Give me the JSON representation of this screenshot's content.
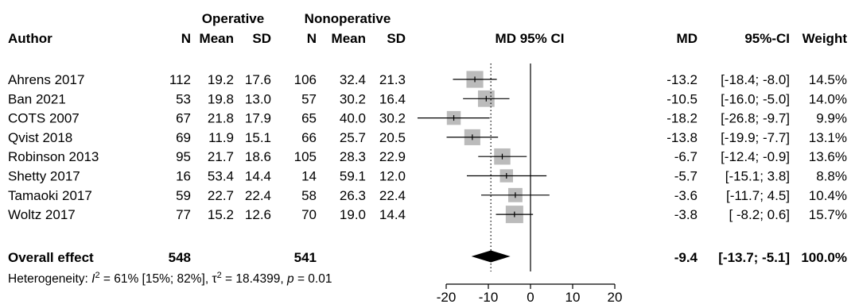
{
  "headers": {
    "group1": "Operative",
    "group2": "Nonoperative",
    "author": "Author",
    "n1": "N",
    "mean1": "Mean",
    "sd1": "SD",
    "n2": "N",
    "mean2": "Mean",
    "sd2": "SD",
    "plot": "MD 95% CI",
    "md": "MD",
    "ci": "95%-CI",
    "weight": "Weight"
  },
  "overall": {
    "label": "Overall effect",
    "n1": "548",
    "n2": "541",
    "md_text": "-9.4",
    "ci_text": "[-13.7; -5.1]",
    "weight_text": "100.0%",
    "md": -9.4,
    "lower": -13.7,
    "upper": -5.1
  },
  "heterogeneity": {
    "prefix": "Heterogeneity: ",
    "i2_symbol": "I",
    "i2_sup": "2",
    "i2_rest": " = 61% [15%; 82%], ",
    "tau_symbol": "τ",
    "tau_sup": "2",
    "tau_rest": " = 18.4399, ",
    "p_symbol": "p",
    "p_rest": " = 0.01"
  },
  "chart_data": {
    "type": "forest",
    "xlabel": "",
    "xlim": [
      -20,
      20
    ],
    "xticks": [
      -20,
      -10,
      0,
      10,
      20
    ],
    "null_line": 0,
    "overall_line": -9.4,
    "marker_color": "#bbbbbb",
    "studies": [
      {
        "author": "Ahrens 2017",
        "n1": "112",
        "mean1": "19.2",
        "sd1": "17.6",
        "n2": "106",
        "mean2": "32.4",
        "sd2": "21.3",
        "md": -13.2,
        "lower": -18.4,
        "upper": -8.0,
        "md_text": "-13.2",
        "ci_text": "[-18.4; -8.0]",
        "weight": 14.5,
        "weight_text": "14.5%"
      },
      {
        "author": "Ban 2021",
        "n1": "53",
        "mean1": "19.8",
        "sd1": "13.0",
        "n2": "57",
        "mean2": "30.2",
        "sd2": "16.4",
        "md": -10.5,
        "lower": -16.0,
        "upper": -5.0,
        "md_text": "-10.5",
        "ci_text": "[-16.0; -5.0]",
        "weight": 14.0,
        "weight_text": "14.0%"
      },
      {
        "author": "COTS 2007",
        "n1": "67",
        "mean1": "21.8",
        "sd1": "17.9",
        "n2": "65",
        "mean2": "40.0",
        "sd2": "30.2",
        "md": -18.2,
        "lower": -26.8,
        "upper": -9.7,
        "md_text": "-18.2",
        "ci_text": "[-26.8; -9.7]",
        "weight": 9.9,
        "weight_text": "9.9%"
      },
      {
        "author": "Qvist 2018",
        "n1": "69",
        "mean1": "11.9",
        "sd1": "15.1",
        "n2": "66",
        "mean2": "25.7",
        "sd2": "20.5",
        "md": -13.8,
        "lower": -19.9,
        "upper": -7.7,
        "md_text": "-13.8",
        "ci_text": "[-19.9; -7.7]",
        "weight": 13.1,
        "weight_text": "13.1%"
      },
      {
        "author": "Robinson 2013",
        "n1": "95",
        "mean1": "21.7",
        "sd1": "18.6",
        "n2": "105",
        "mean2": "28.3",
        "sd2": "22.9",
        "md": -6.7,
        "lower": -12.4,
        "upper": -0.9,
        "md_text": "-6.7",
        "ci_text": "[-12.4; -0.9]",
        "weight": 13.6,
        "weight_text": "13.6%"
      },
      {
        "author": "Shetty 2017",
        "n1": "16",
        "mean1": "53.4",
        "sd1": "14.4",
        "n2": "14",
        "mean2": "59.1",
        "sd2": "12.0",
        "md": -5.7,
        "lower": -15.1,
        "upper": 3.8,
        "md_text": "-5.7",
        "ci_text": "[-15.1; 3.8]",
        "weight": 8.8,
        "weight_text": "8.8%"
      },
      {
        "author": "Tamaoki 2017",
        "n1": "59",
        "mean1": "22.7",
        "sd1": "22.4",
        "n2": "58",
        "mean2": "26.3",
        "sd2": "22.4",
        "md": -3.6,
        "lower": -11.7,
        "upper": 4.5,
        "md_text": "-3.6",
        "ci_text": "[-11.7; 4.5]",
        "weight": 10.4,
        "weight_text": "10.4%"
      },
      {
        "author": "Woltz 2017",
        "n1": "77",
        "mean1": "15.2",
        "sd1": "12.6",
        "n2": "70",
        "mean2": "19.0",
        "sd2": "14.4",
        "md": -3.8,
        "lower": -8.2,
        "upper": 0.6,
        "md_text": "-3.8",
        "ci_text": "[ -8.2; 0.6]",
        "weight": 15.7,
        "weight_text": "15.7%"
      }
    ]
  }
}
